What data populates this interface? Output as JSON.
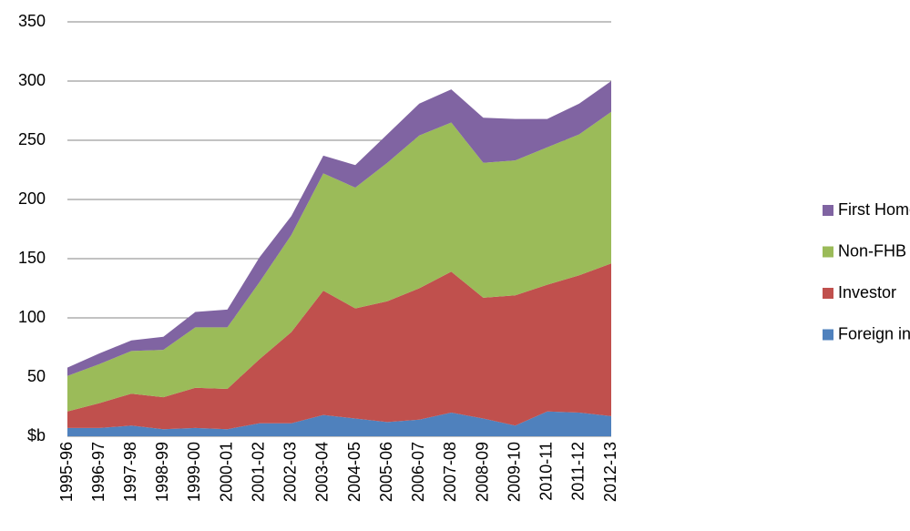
{
  "chart_data": {
    "type": "stacked-area",
    "categories": [
      "1995-96",
      "1996-97",
      "1997-98",
      "1998-99",
      "1999-00",
      "2000-01",
      "2001-02",
      "2002-03",
      "2003-04",
      "2004-05",
      "2005-06",
      "2006-07",
      "2007-08",
      "2008-09",
      "2009-10",
      "2010-11",
      "2011-12",
      "2012-13"
    ],
    "series": [
      {
        "name": "Foreign investor",
        "color": "#4f81bd",
        "values": [
          7,
          7,
          9,
          6,
          7,
          6,
          11,
          11,
          18,
          15,
          12,
          14,
          20,
          15,
          9,
          21,
          20,
          17
        ]
      },
      {
        "name": "Investor",
        "color": "#c0504d",
        "values": [
          14,
          21,
          27,
          27,
          34,
          34,
          54,
          77,
          105,
          93,
          102,
          111,
          119,
          102,
          110,
          107,
          116,
          129
        ]
      },
      {
        "name": "Non-FHB",
        "color": "#9bbb59",
        "values": [
          30,
          33,
          36,
          40,
          51,
          52,
          65,
          82,
          99,
          102,
          117,
          129,
          126,
          114,
          114,
          116,
          119,
          128
        ]
      },
      {
        "name": "First Home Buyers (FHB)",
        "color": "#8064a2",
        "values": [
          7,
          9,
          9,
          11,
          13,
          15,
          21,
          16,
          15,
          19,
          24,
          27,
          28,
          38,
          35,
          24,
          26,
          26
        ]
      }
    ],
    "ylim": [
      0,
      350
    ],
    "yticks": [
      {
        "value": 0,
        "label": "$b"
      },
      50,
      100,
      150,
      200,
      250,
      300,
      350
    ],
    "grid": true,
    "legend": "right"
  }
}
